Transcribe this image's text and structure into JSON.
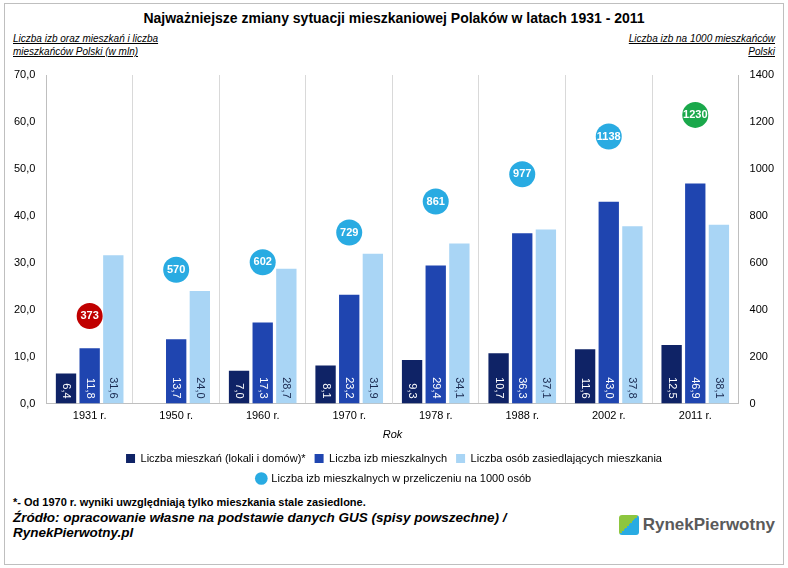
{
  "chart_data": {
    "type": "bar",
    "title": "Najważniejsze zmiany sytuacji mieszkaniowej Polaków w latach 1931 - 2011",
    "x_label": "Rok",
    "y_label": "Liczba izb oraz mieszkań i liczba mieszkańców Polski (w mln)",
    "y2_label": "Liczba izb na 1000 mieszkańców Polski",
    "categories": [
      "1931 r.",
      "1950 r.",
      "1960 r.",
      "1970 r.",
      "1978 r.",
      "1988 r.",
      "2002 r.",
      "2011 r."
    ],
    "series": [
      {
        "name": "Liczba mieszkań (lokali i domów)*",
        "type": "bar",
        "color": "#0f2366",
        "values": [
          6.4,
          null,
          7.0,
          8.1,
          9.3,
          10.7,
          11.6,
          12.5
        ],
        "value_labels": [
          "6,4",
          null,
          "7,0",
          "8,1",
          "9,3",
          "10,7",
          "11,6",
          "12,5"
        ]
      },
      {
        "name": "Liczba izb mieszkalnych",
        "type": "bar",
        "color": "#1f45b0",
        "values": [
          11.8,
          13.7,
          17.3,
          23.2,
          29.4,
          36.3,
          43.0,
          46.9
        ],
        "value_labels": [
          "11,8",
          "13,7",
          "17,3",
          "23,2",
          "29,4",
          "36,3",
          "43,0",
          "46,9"
        ]
      },
      {
        "name": "Liczba osób zasiedlających mieszkania",
        "type": "bar",
        "color": "#a9d5f5",
        "values": [
          31.6,
          24.0,
          28.7,
          31.9,
          34.1,
          37.1,
          37.8,
          38.1
        ],
        "value_labels": [
          "31,6",
          "24,0",
          "28,7",
          "31,9",
          "34,1",
          "37,1",
          "37,8",
          "38,1"
        ]
      },
      {
        "name": "Liczba izb mieszkalnych w przeliczeniu na 1000 osób",
        "type": "scatter",
        "axis": "y2",
        "marker": "circle",
        "line_style": "none",
        "color": "#29abe2",
        "colors": [
          "#c00000",
          "#29abe2",
          "#29abe2",
          "#29abe2",
          "#29abe2",
          "#29abe2",
          "#29abe2",
          "#1aa84b"
        ],
        "values": [
          373,
          570,
          602,
          729,
          861,
          977,
          1138,
          1230
        ]
      }
    ],
    "ylim": [
      0,
      70
    ],
    "yticks": [
      {
        "value": 0,
        "label": "0,0"
      },
      {
        "value": 10,
        "label": "10,0"
      },
      {
        "value": 20,
        "label": "20,0"
      },
      {
        "value": 30,
        "label": "30,0"
      },
      {
        "value": 40,
        "label": "40,0"
      },
      {
        "value": 50,
        "label": "50,0"
      },
      {
        "value": 60,
        "label": "60,0"
      },
      {
        "value": 70,
        "label": "70,0"
      }
    ],
    "y2lim": [
      0,
      1400
    ],
    "y2ticks": [
      0,
      200,
      400,
      600,
      800,
      1000,
      1200,
      1400
    ],
    "grid": true,
    "legend": "bottom",
    "data_labels": true,
    "footnote": "*- Od 1970 r. wyniki uwzględniają tylko mieszkania stale zasiedlone.",
    "source": "Źródło: opracowanie własne na podstawie danych GUS (spisy powszechne) / RynekPierwotny.pl",
    "logo": "RynekPierwotny"
  }
}
